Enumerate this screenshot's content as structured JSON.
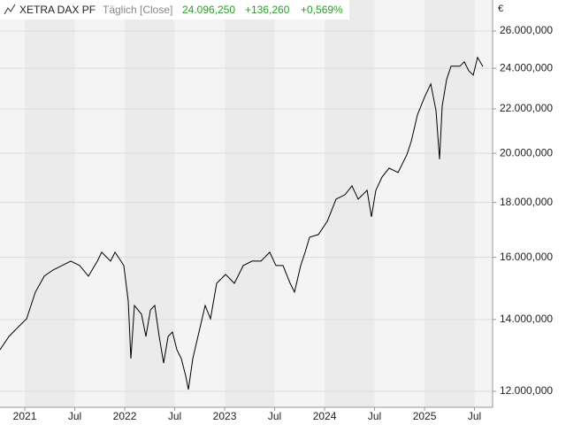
{
  "chart_data": {
    "type": "line",
    "title": "XETRA DAX PF",
    "subtitle": "Täglich [Close]",
    "header_values": [
      "24.096,250",
      "+136,260",
      "+0,569%"
    ],
    "y_unit": "€",
    "log_y": true,
    "grid": true,
    "xlim": [
      2020.752,
      2025.681
    ],
    "xticks": [
      {
        "value": 2021,
        "label": "2021"
      },
      {
        "value": 2021.5,
        "label": "Jul"
      },
      {
        "value": 2022,
        "label": "2022"
      },
      {
        "value": 2022.5,
        "label": "Jul"
      },
      {
        "value": 2023,
        "label": "2023"
      },
      {
        "value": 2023.5,
        "label": "Jul"
      },
      {
        "value": 2024,
        "label": "2024"
      },
      {
        "value": 2024.5,
        "label": "Jul"
      },
      {
        "value": 2025,
        "label": "2025"
      },
      {
        "value": 2025.5,
        "label": "Jul"
      }
    ],
    "ylim": [
      11597,
      27790
    ],
    "yticks": [
      {
        "value": 12000,
        "label": "12.000,000"
      },
      {
        "value": 14000,
        "label": "14.000,000"
      },
      {
        "value": 16000,
        "label": "16.000,000"
      },
      {
        "value": 18000,
        "label": "18.000,000"
      },
      {
        "value": 20000,
        "label": "20.000,000"
      },
      {
        "value": 22000,
        "label": "22.000,000"
      },
      {
        "value": 24000,
        "label": "24.000,000"
      },
      {
        "value": 26000,
        "label": "26.000,000"
      }
    ],
    "series": [
      {
        "color": "#000000",
        "x": [
          2020.752,
          2020.841,
          2020.929,
          2021.018,
          2021.106,
          2021.195,
          2021.283,
          2021.372,
          2021.46,
          2021.549,
          2021.637,
          2021.726,
          2021.77,
          2021.858,
          2021.903,
          2021.991,
          2022.035,
          2022.062,
          2022.097,
          2022.168,
          2022.212,
          2022.257,
          2022.301,
          2022.345,
          2022.389,
          2022.434,
          2022.478,
          2022.522,
          2022.566,
          2022.611,
          2022.637,
          2022.681,
          2022.743,
          2022.805,
          2022.858,
          2022.92,
          2023.009,
          2023.097,
          2023.186,
          2023.274,
          2023.363,
          2023.451,
          2023.513,
          2023.584,
          2023.655,
          2023.699,
          2023.761,
          2023.805,
          2023.85,
          2023.938,
          2024.027,
          2024.115,
          2024.204,
          2024.274,
          2024.336,
          2024.425,
          2024.469,
          2024.513,
          2024.575,
          2024.646,
          2024.735,
          2024.823,
          2024.867,
          2024.929,
          2025.0,
          2025.062,
          2025.115,
          2025.15,
          2025.177,
          2025.221,
          2025.265,
          2025.354,
          2025.398,
          2025.442,
          2025.487,
          2025.531,
          2025.584
        ],
        "values": [
          13122,
          13501,
          13760,
          14024,
          14848,
          15364,
          15571,
          15720,
          15870,
          15720,
          15364,
          15870,
          16174,
          15870,
          16174,
          15720,
          14568,
          12875,
          14430,
          14159,
          13501,
          14293,
          14430,
          13501,
          12752,
          13501,
          13630,
          13122,
          12875,
          12395,
          12046,
          12875,
          13630,
          14430,
          14024,
          15132,
          15424,
          15132,
          15720,
          15870,
          15870,
          16174,
          15720,
          15720,
          15132,
          14848,
          15720,
          16174,
          16705,
          16800,
          17286,
          18127,
          18300,
          18652,
          18127,
          18476,
          17452,
          18476,
          19009,
          19375,
          19192,
          19936,
          20512,
          21716,
          22558,
          23209,
          21923,
          19747,
          22133,
          23431,
          24109,
          24109,
          24340,
          23882,
          23657,
          24572,
          24096.25
        ]
      }
    ]
  }
}
